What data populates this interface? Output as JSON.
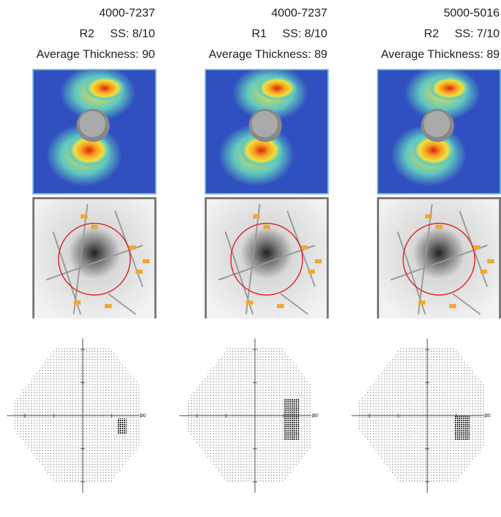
{
  "columns": [
    {
      "scan_id": "4000-7237",
      "eye": "R2",
      "signal_strength": "SS: 8/10",
      "average_thickness": "Average Thickness: 90",
      "field_axis_label": "30"
    },
    {
      "scan_id": "4000-7237",
      "eye": "R1",
      "signal_strength": "SS: 8/10",
      "average_thickness": "Average Thickness: 89",
      "field_axis_label": "30"
    },
    {
      "scan_id": "5000-5016",
      "eye": "R2",
      "signal_strength": "SS: 7/10",
      "average_thickness": "Average Thickness: 89",
      "field_axis_label": "30"
    }
  ]
}
